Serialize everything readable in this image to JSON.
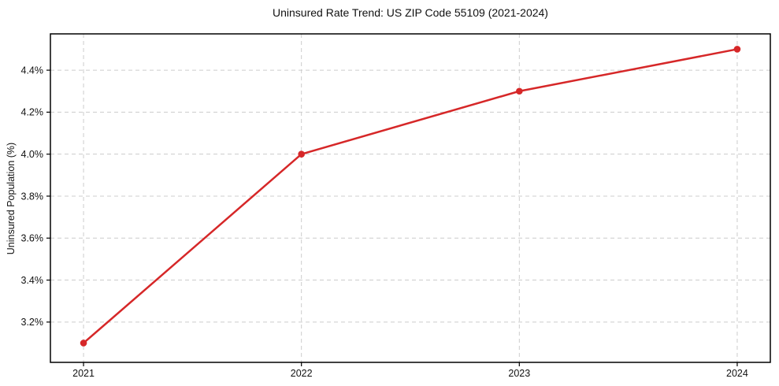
{
  "figure": {
    "background": "#ffffff"
  },
  "chart_data": {
    "type": "line",
    "title": "Uninsured Rate Trend: US ZIP Code 55109 (2021-2024)",
    "xlabel": "",
    "ylabel": "Uninsured Population (%)",
    "x": [
      2021,
      2022,
      2023,
      2024
    ],
    "x_tick_labels": [
      "2021",
      "2022",
      "2023",
      "2024"
    ],
    "values": [
      3.1,
      4.0,
      4.3,
      4.5
    ],
    "y_ticks": [
      3.2,
      3.4,
      3.6,
      3.8,
      4.0,
      4.2,
      4.4
    ],
    "y_tick_labels": [
      "3.2%",
      "3.4%",
      "3.6%",
      "3.8%",
      "4.0%",
      "4.2%",
      "4.4%"
    ],
    "xlim": [
      2020.848,
      2024.152
    ],
    "ylim": [
      3.008,
      4.573
    ],
    "grid": "dashed-both-axes",
    "legend": "none",
    "line_color": "#d62728",
    "marker": "circle",
    "marker_color": "#d62728",
    "grid_color": "#cccccc",
    "frame_color": "#000000",
    "tick_color": "#000000",
    "text_color": "#111111"
  }
}
